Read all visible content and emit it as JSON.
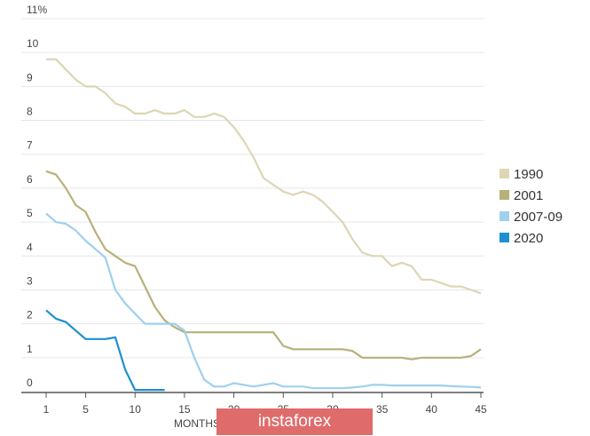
{
  "chart_data": {
    "type": "line",
    "title": "",
    "xlabel": "MONTHS",
    "ylabel": "",
    "xlim": [
      1,
      45
    ],
    "ylim": [
      0,
      11
    ],
    "x_ticks": [
      "1",
      "5",
      "10",
      "15",
      "20",
      "25",
      "30",
      "35",
      "40",
      "45"
    ],
    "y_ticks": [
      "0",
      "1",
      "2",
      "3",
      "4",
      "5",
      "6",
      "7",
      "8",
      "9",
      "10",
      "11%"
    ],
    "grid": true,
    "legend_position": "right",
    "series": [
      {
        "name": "1990",
        "color": "#ddd6b4",
        "values": [
          9.8,
          9.8,
          9.5,
          9.2,
          9.0,
          9.0,
          8.8,
          8.5,
          8.4,
          8.2,
          8.2,
          8.3,
          8.2,
          8.2,
          8.3,
          8.1,
          8.1,
          8.2,
          8.1,
          7.8,
          7.4,
          6.9,
          6.3,
          6.1,
          5.9,
          5.8,
          5.9,
          5.8,
          5.6,
          5.3,
          5.0,
          4.5,
          4.1,
          4.0,
          4.0,
          3.7,
          3.8,
          3.7,
          3.3,
          3.3,
          3.2,
          3.1,
          3.1,
          3.0,
          2.9
        ]
      },
      {
        "name": "2001",
        "color": "#b8b07a",
        "values": [
          6.5,
          6.4,
          6.0,
          5.5,
          5.3,
          4.7,
          4.2,
          4.0,
          3.8,
          3.7,
          3.1,
          2.5,
          2.1,
          1.9,
          1.75,
          1.75,
          1.75,
          1.75,
          1.75,
          1.75,
          1.75,
          1.75,
          1.75,
          1.75,
          1.35,
          1.25,
          1.25,
          1.25,
          1.25,
          1.25,
          1.25,
          1.2,
          1.0,
          1.0,
          1.0,
          1.0,
          1.0,
          0.95,
          1.0,
          1.0,
          1.0,
          1.0,
          1.0,
          1.05,
          1.25
        ]
      },
      {
        "name": "2007-09",
        "color": "#9fd0ec",
        "values": [
          5.25,
          5.0,
          4.95,
          4.75,
          4.45,
          4.2,
          3.95,
          3.0,
          2.6,
          2.3,
          2.0,
          2.0,
          2.0,
          2.0,
          1.8,
          1.0,
          0.35,
          0.15,
          0.15,
          0.25,
          0.2,
          0.15,
          0.2,
          0.25,
          0.15,
          0.15,
          0.15,
          0.1,
          0.1,
          0.1,
          0.1,
          0.12,
          0.15,
          0.2,
          0.2,
          0.18,
          0.18,
          0.18,
          0.18,
          0.18,
          0.18,
          0.16,
          0.15,
          0.14,
          0.12
        ]
      },
      {
        "name": "2020",
        "color": "#1e8fd0",
        "values": [
          2.4,
          2.15,
          2.05,
          1.8,
          1.55,
          1.55,
          1.55,
          1.6,
          0.65,
          0.05,
          0.05,
          0.05,
          0.05
        ]
      }
    ]
  },
  "watermark": "instaforex"
}
